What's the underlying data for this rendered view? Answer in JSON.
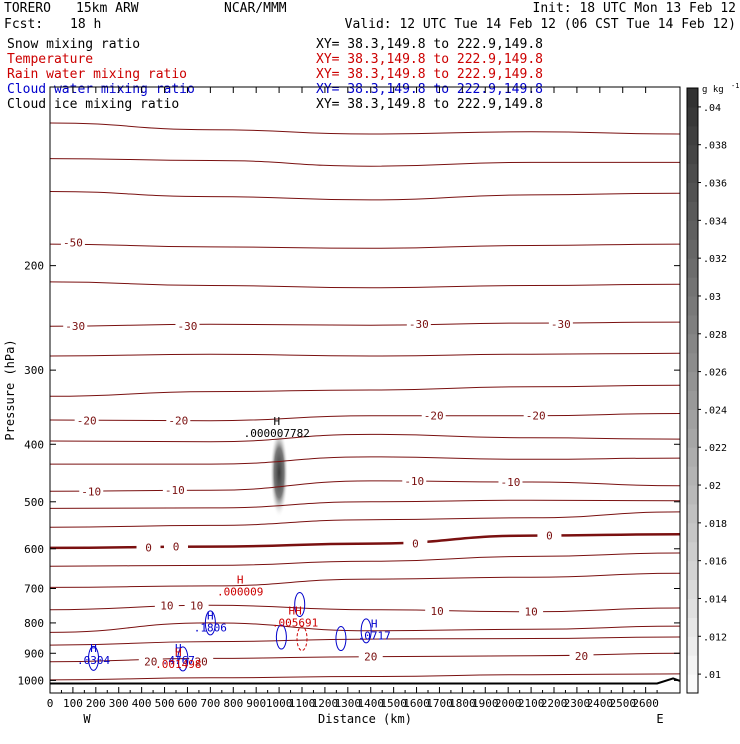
{
  "header": {
    "model": "TORERO",
    "resolution": "15km ARW",
    "org": "NCAR/MMM",
    "init": "Init: 18 UTC Mon 13 Feb 12",
    "fcst_label": "Fcst:",
    "fcst_value": "18 h",
    "valid": "Valid: 12 UTC Tue 14 Feb 12 (06 CST Tue 14 Feb 12)"
  },
  "fields": [
    {
      "name": "Snow mixing ratio",
      "xy": "XY=  38.3,149.8 to 222.9,149.8",
      "color": "#000000"
    },
    {
      "name": "Temperature",
      "xy": "XY=  38.3,149.8 to 222.9,149.8",
      "color": "#cc0000"
    },
    {
      "name": "Rain water mixing ratio",
      "xy": "XY=  38.3,149.8 to 222.9,149.8",
      "color": "#cc0000"
    },
    {
      "name": "Cloud water mixing ratio",
      "xy": "XY=  38.3,149.8 to 222.9,149.8",
      "color": "#0000cc"
    },
    {
      "name": "Cloud ice mixing ratio",
      "xy": "XY=  38.3,149.8 to 222.9,149.8",
      "color": "#000000"
    }
  ],
  "chart_data": {
    "type": "contour cross-section",
    "xlabel": "Distance (km)",
    "ylabel": "Pressure (hPa)",
    "xlim": [
      0,
      2750
    ],
    "ylim": [
      1050,
      100
    ],
    "x_ticks": [
      "0",
      "100",
      "200",
      "300",
      "400",
      "500",
      "600",
      "700",
      "800",
      "900",
      "1000",
      "1100",
      "1200",
      "1300",
      "1400",
      "1500",
      "1600",
      "1700",
      "1800",
      "1900",
      "2000",
      "2100",
      "2200",
      "2300",
      "2400",
      "2500",
      "2600"
    ],
    "x_tick_values": [
      0,
      100,
      200,
      300,
      400,
      500,
      600,
      700,
      800,
      900,
      1000,
      1100,
      1200,
      1300,
      1400,
      1500,
      1600,
      1700,
      1800,
      1900,
      2000,
      2100,
      2200,
      2300,
      2400,
      2500,
      2600
    ],
    "y_ticks": [
      "200",
      "300",
      "400",
      "500",
      "600",
      "700",
      "800",
      "900",
      "1000"
    ],
    "y_tick_values": [
      200,
      300,
      400,
      500,
      600,
      700,
      800,
      900,
      1000
    ],
    "endpoint_left": "W",
    "endpoint_right": "E",
    "colorbar": {
      "unit_base": "g kg",
      "unit_exp": "-1",
      "ticks": [
        ".04",
        ".038",
        ".036",
        ".034",
        ".032",
        ".03",
        ".028",
        ".026",
        ".024",
        ".022",
        ".02",
        ".018",
        ".016",
        ".014",
        ".012",
        ".01"
      ],
      "tick_values": [
        0.04,
        0.038,
        0.036,
        0.034,
        0.032,
        0.03,
        0.028,
        0.026,
        0.024,
        0.022,
        0.02,
        0.018,
        0.016,
        0.014,
        0.012,
        0.01
      ],
      "range": [
        0.009,
        0.041
      ]
    },
    "temperature_labels": [
      {
        "text": "-50",
        "x": 100,
        "p": 183
      },
      {
        "text": "-30",
        "x": 110,
        "p": 253
      },
      {
        "text": "-30",
        "x": 600,
        "p": 253
      },
      {
        "text": "-30",
        "x": 1610,
        "p": 251
      },
      {
        "text": "-30",
        "x": 2230,
        "p": 251
      },
      {
        "text": "-20",
        "x": 160,
        "p": 365
      },
      {
        "text": "-20",
        "x": 560,
        "p": 365
      },
      {
        "text": "-20",
        "x": 1675,
        "p": 358
      },
      {
        "text": "-20",
        "x": 2120,
        "p": 358
      },
      {
        "text": "-10",
        "x": 180,
        "p": 480
      },
      {
        "text": "-10",
        "x": 545,
        "p": 478
      },
      {
        "text": "-10",
        "x": 1590,
        "p": 461
      },
      {
        "text": "-10",
        "x": 2010,
        "p": 463
      },
      {
        "text": "0",
        "x": 430,
        "p": 597
      },
      {
        "text": "0",
        "x": 550,
        "p": 595
      },
      {
        "text": "0",
        "x": 1595,
        "p": 588
      },
      {
        "text": "0",
        "x": 2180,
        "p": 570
      },
      {
        "text": "10",
        "x": 510,
        "p": 747
      },
      {
        "text": "10",
        "x": 640,
        "p": 747
      },
      {
        "text": "10",
        "x": 1690,
        "p": 764
      },
      {
        "text": "10",
        "x": 2100,
        "p": 766
      },
      {
        "text": "20",
        "x": 440,
        "p": 930
      },
      {
        "text": "20",
        "x": 660,
        "p": 930
      },
      {
        "text": "20",
        "x": 1400,
        "p": 912
      },
      {
        "text": "20",
        "x": 2320,
        "p": 909
      }
    ],
    "extrema_labels": [
      {
        "mark": "H",
        "value": ".000007782",
        "x": 990,
        "p": 371,
        "color": "#000000"
      },
      {
        "mark": "H",
        "value": ".000009",
        "x": 830,
        "p": 687,
        "color": "#cc0000"
      },
      {
        "mark": "HH",
        "value": ".005691",
        "x": 1070,
        "p": 774,
        "color": "#cc0000"
      },
      {
        "mark": "H",
        "value": ".1806",
        "x": 700,
        "p": 790,
        "color": "#0000cc"
      },
      {
        "mark": "H",
        "value": ".0717",
        "x": 1415,
        "p": 815,
        "color": "#0000cc"
      },
      {
        "mark": "H",
        "value": ".0304",
        "x": 190,
        "p": 895,
        "color": "#0000cc"
      },
      {
        "mark": "H",
        "value": ".4767",
        "x": 560,
        "p": 895,
        "color": "#0000cc"
      },
      {
        "mark": "H",
        "value": ".001498",
        "x": 560,
        "p": 910,
        "color": "#cc0000"
      }
    ],
    "temperature_isotherms": [
      {
        "values_p": [
          115,
          118,
          120,
          119,
          120
        ],
        "x": [
          0,
          700,
          1400,
          2100,
          2750
        ],
        "bold": false
      },
      {
        "values_p": [
          132,
          133,
          136,
          134,
          134
        ],
        "x": [
          0,
          700,
          1400,
          2100,
          2750
        ],
        "bold": false
      },
      {
        "values_p": [
          150,
          153,
          155,
          152,
          151
        ],
        "x": [
          0,
          700,
          1400,
          2100,
          2750
        ],
        "bold": false
      },
      {
        "values_p": [
          184,
          186,
          187,
          185,
          184
        ],
        "x": [
          0,
          700,
          1400,
          2100,
          2750
        ],
        "bold": false
      },
      {
        "values_p": [
          213,
          216,
          218,
          216,
          215
        ],
        "x": [
          0,
          700,
          1400,
          2100,
          2750
        ],
        "bold": false
      },
      {
        "values_p": [
          253,
          251,
          252,
          250,
          249
        ],
        "x": [
          0,
          700,
          1400,
          2100,
          2750
        ],
        "bold": false
      },
      {
        "values_p": [
          284,
          282,
          284,
          282,
          281
        ],
        "x": [
          0,
          700,
          1400,
          2100,
          2750
        ],
        "bold": false
      },
      {
        "values_p": [
          332,
          326,
          324,
          320,
          318
        ],
        "x": [
          0,
          700,
          1400,
          2100,
          2750
        ],
        "bold": false
      },
      {
        "values_p": [
          364,
          365,
          358,
          358,
          355
        ],
        "x": [
          0,
          700,
          1400,
          2100,
          2750
        ],
        "bold": false
      },
      {
        "values_p": [
          395,
          396,
          385,
          390,
          392
        ],
        "x": [
          0,
          700,
          1400,
          2100,
          2750
        ],
        "bold": false
      },
      {
        "values_p": [
          432,
          432,
          420,
          424,
          422
        ],
        "x": [
          0,
          700,
          1400,
          2100,
          2750
        ],
        "bold": false
      },
      {
        "values_p": [
          480,
          478,
          461,
          463,
          470
        ],
        "x": [
          0,
          700,
          1400,
          2100,
          2750
        ],
        "bold": false
      },
      {
        "values_p": [
          513,
          512,
          500,
          497,
          498
        ],
        "x": [
          0,
          700,
          1400,
          2100,
          2750
        ],
        "bold": false
      },
      {
        "values_p": [
          552,
          548,
          536,
          532,
          520
        ],
        "x": [
          0,
          700,
          1400,
          2100,
          2750
        ],
        "bold": false
      },
      {
        "values_p": [
          598,
          595,
          588,
          570,
          567
        ],
        "x": [
          0,
          700,
          1400,
          2100,
          2750
        ],
        "bold": true
      },
      {
        "values_p": [
          642,
          640,
          630,
          618,
          610
        ],
        "x": [
          0,
          700,
          1400,
          2100,
          2750
        ],
        "bold": false
      },
      {
        "values_p": [
          697,
          693,
          675,
          670,
          660
        ],
        "x": [
          0,
          700,
          1400,
          2100,
          2750
        ],
        "bold": false
      },
      {
        "values_p": [
          760,
          747,
          760,
          766,
          755
        ],
        "x": [
          0,
          700,
          1400,
          2100,
          2750
        ],
        "bold": false
      },
      {
        "values_p": [
          830,
          800,
          825,
          820,
          810
        ],
        "x": [
          0,
          700,
          1400,
          2100,
          2750
        ],
        "bold": false
      },
      {
        "values_p": [
          872,
          860,
          852,
          850,
          845
        ],
        "x": [
          0,
          700,
          1400,
          2100,
          2750
        ],
        "bold": false
      },
      {
        "values_p": [
          930,
          918,
          912,
          909,
          900
        ],
        "x": [
          0,
          700,
          1400,
          2100,
          2750
        ],
        "bold": false
      },
      {
        "values_p": [
          998,
          990,
          985,
          978,
          975
        ],
        "x": [
          0,
          700,
          1400,
          2100,
          2750
        ],
        "bold": false
      }
    ],
    "snow_core": {
      "x": 1000,
      "p_top": 375,
      "p_bottom": 532,
      "max": 0.04
    }
  }
}
